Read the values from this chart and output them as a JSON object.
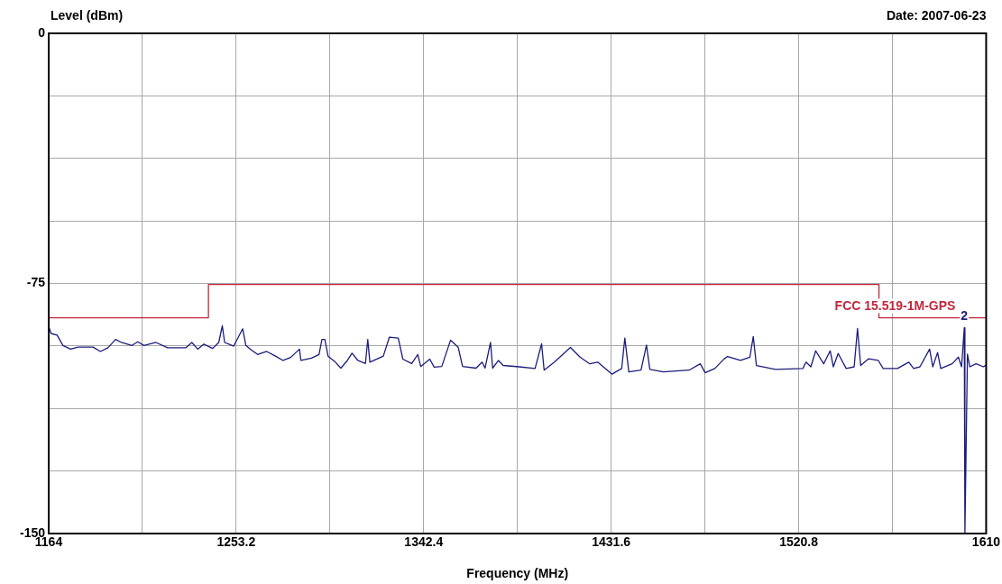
{
  "chart_data": {
    "type": "line",
    "xlabel": "Frequency (MHz)",
    "ylabel": "Level (dBm)",
    "annotations": [
      "Date: 2007-06-23",
      {
        "text": "2",
        "x": 1599.6,
        "y": -88.3
      }
    ],
    "xlim": [
      1164,
      1610
    ],
    "xticks": [
      1164,
      {
        "value": 1208.6,
        "label": null
      },
      1253.2,
      {
        "value": 1297.8,
        "label": null
      },
      1342.4,
      {
        "value": 1387,
        "label": null
      },
      1431.6,
      {
        "value": 1476.2,
        "label": null
      },
      1520.8,
      {
        "value": 1565.4,
        "label": null
      },
      1610
    ],
    "ylim": [
      -150,
      0
    ],
    "yticks": [
      -150,
      {
        "value": -131.25,
        "label": null
      },
      {
        "value": -112.5,
        "label": null
      },
      {
        "value": -93.75,
        "label": null
      },
      -75,
      {
        "value": -56.25,
        "label": null
      },
      {
        "value": -37.5,
        "label": null
      },
      {
        "value": -18.75,
        "label": null
      },
      0
    ],
    "grid": true,
    "marker": "none",
    "line_style": "solid",
    "series": [
      {
        "name": "FCC 15.519-1M-GPS",
        "type": "step",
        "color": "#c0283c",
        "x": [
          1164,
          1240,
          1559,
          1610
        ],
        "values": [
          -85.3,
          -75.3,
          -85.3,
          -85.3
        ]
      },
      {
        "color": "#1c1c7c",
        "x": [
          1164.2,
          1165.1,
          1168.0,
          1170.8,
          1174.4,
          1178.0,
          1185.1,
          1188.6,
          1192.2,
          1195.8,
          1198.6,
          1203.6,
          1206.4,
          1209.3,
          1215.0,
          1220.6,
          1229.2,
          1232.1,
          1234.9,
          1237.8,
          1242.0,
          1244.9,
          1246.6,
          1247.7,
          1252.0,
          1256.3,
          1257.8,
          1260.5,
          1263.4,
          1267.7,
          1271.9,
          1275.5,
          1279.1,
          1283.3,
          1284.0,
          1289.0,
          1292.6,
          1294.0,
          1295.4,
          1296.9,
          1300.4,
          1303.0,
          1306.1,
          1308.3,
          1311.1,
          1314.7,
          1315.8,
          1316.8,
          1323.2,
          1326.1,
          1330.3,
          1332.5,
          1336.7,
          1339.6,
          1341.0,
          1345.3,
          1347.4,
          1351.0,
          1355.2,
          1358.8,
          1360.9,
          1367.3,
          1370.2,
          1371.6,
          1374.2,
          1375.2,
          1378.0,
          1380.2,
          1387.8,
          1395.4,
          1398.5,
          1399.7,
          1404.6,
          1412.2,
          1416.8,
          1421.4,
          1425.2,
          1432.0,
          1436.6,
          1438.1,
          1440.0,
          1445.8,
          1448.4,
          1450.0,
          1456.4,
          1468.7,
          1474.0,
          1476.3,
          1480.9,
          1485.4,
          1487.0,
          1493.1,
          1497.6,
          1499.2,
          1500.7,
          1509.8,
          1522.8,
          1524.3,
          1526.6,
          1528.9,
          1532.7,
          1535.8,
          1537.3,
          1539.6,
          1543.4,
          1547.2,
          1548.8,
          1550.3,
          1554.1,
          1558.7,
          1561.0,
          1567.8,
          1573.2,
          1575.5,
          1578.5,
          1583.1,
          1584.6,
          1586.9,
          1588.4,
          1593.8,
          1596.8,
          1598.3,
          1599.6,
          1599.9,
          1601.1,
          1602.2,
          1605.2,
          1608.7,
          1610
        ],
        "values": [
          -88.2,
          -90.0,
          -90.5,
          -93.6,
          -94.7,
          -94.1,
          -94.1,
          -95.4,
          -94.3,
          -91.8,
          -92.7,
          -93.6,
          -92.5,
          -93.6,
          -92.7,
          -94.3,
          -94.3,
          -92.7,
          -94.7,
          -93.2,
          -94.5,
          -92.7,
          -87.7,
          -92.7,
          -93.8,
          -88.6,
          -93.6,
          -95.0,
          -96.3,
          -95.4,
          -96.8,
          -98.1,
          -97.2,
          -94.7,
          -98.1,
          -97.4,
          -96.3,
          -91.8,
          -91.8,
          -96.8,
          -98.6,
          -100.4,
          -98.1,
          -95.9,
          -98.1,
          -99.0,
          -91.8,
          -98.6,
          -96.8,
          -91.1,
          -91.4,
          -97.7,
          -99.0,
          -96.3,
          -99.9,
          -97.7,
          -100.1,
          -99.9,
          -92.0,
          -94.1,
          -99.9,
          -100.4,
          -98.6,
          -100.4,
          -92.7,
          -100.4,
          -98.1,
          -99.6,
          -100.0,
          -100.5,
          -93.1,
          -101.0,
          -98.6,
          -94.2,
          -97.1,
          -99.1,
          -98.6,
          -102.2,
          -100.5,
          -91.4,
          -101.5,
          -101.0,
          -93.5,
          -100.8,
          -101.5,
          -101.0,
          -99.1,
          -101.8,
          -100.5,
          -97.6,
          -96.9,
          -98.1,
          -97.1,
          -90.9,
          -99.6,
          -100.8,
          -100.5,
          -98.6,
          -100.0,
          -95.2,
          -99.1,
          -95.2,
          -100.0,
          -96.0,
          -100.5,
          -100.0,
          -88.5,
          -99.6,
          -97.6,
          -98.1,
          -100.5,
          -100.5,
          -98.6,
          -100.5,
          -100.0,
          -94.7,
          -100.0,
          -95.7,
          -100.5,
          -99.1,
          -97.1,
          -100.0,
          -88.3,
          -150,
          -96.2,
          -100.0,
          -99.1,
          -100.0,
          -99.5
        ]
      }
    ]
  }
}
